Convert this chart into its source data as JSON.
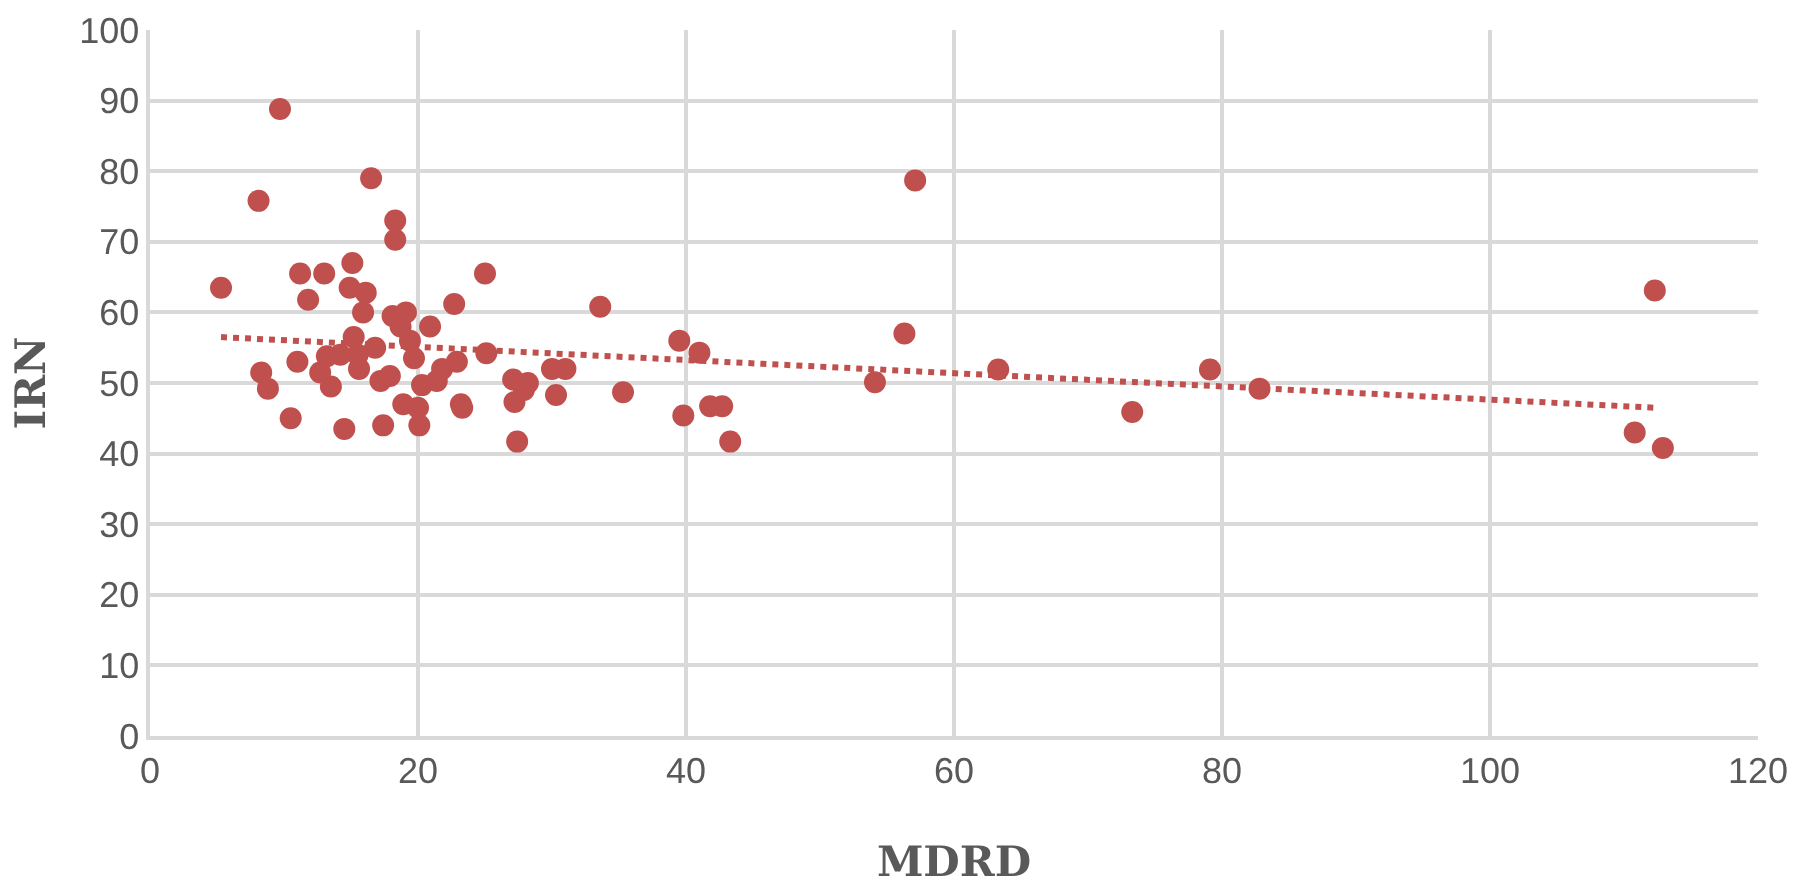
{
  "chart_data": {
    "type": "scatter",
    "xlabel": "MDRD",
    "ylabel": "IRN",
    "xlim": [
      0,
      120
    ],
    "xticks": [
      0,
      20,
      40,
      60,
      80,
      100,
      120
    ],
    "ylim": [
      0,
      100
    ],
    "yticks": [
      0,
      10,
      20,
      30,
      40,
      50,
      60,
      70,
      80,
      90,
      100
    ],
    "grid": true,
    "series": [
      {
        "color": "#c0504d",
        "marker": "circle",
        "x": [
          5.3,
          8.1,
          8.3,
          8.8,
          9.7,
          10.5,
          11,
          11.2,
          11.8,
          12.7,
          13,
          13.2,
          13.5,
          14.2,
          14.5,
          14.9,
          15.1,
          15.2,
          15.5,
          15.6,
          15.9,
          16.1,
          16.5,
          16.8,
          17.2,
          17.4,
          17.9,
          18.1,
          18.3,
          18.3,
          18.7,
          18.9,
          19.1,
          19.4,
          19.7,
          20,
          20.1,
          20.3,
          20.9,
          21.4,
          21.8,
          22.7,
          22.9,
          23.2,
          23.3,
          25,
          25.1,
          27.1,
          27.2,
          27.4,
          27.9,
          28.2,
          30,
          30.3,
          31,
          33.6,
          35.3,
          39.5,
          39.8,
          41,
          41.8,
          42.7,
          43.3,
          54.1,
          56.3,
          57.1,
          63.3,
          73.3,
          79.1,
          82.8,
          110.8,
          112.3,
          112.9
        ],
        "values": [
          63.5,
          75.8,
          51.5,
          49.2,
          88.8,
          45,
          53,
          65.5,
          61.8,
          51.5,
          65.5,
          53.8,
          49.5,
          54,
          43.5,
          63.5,
          67,
          56.5,
          54,
          52,
          60,
          62.8,
          79,
          55,
          50.3,
          44,
          51,
          59.5,
          73,
          70.3,
          58,
          47,
          60,
          56,
          53.5,
          46.5,
          44,
          49.7,
          58,
          50.3,
          52,
          61.2,
          53,
          47,
          46.5,
          65.5,
          54.2,
          50.5,
          47.3,
          41.7,
          49,
          50,
          52,
          48.3,
          52,
          60.8,
          48.7,
          56,
          45.4,
          54.3,
          46.7,
          46.7,
          41.7,
          50.1,
          57,
          78.7,
          51.9,
          45.9,
          51.9,
          49.2,
          43,
          63.1,
          40.8
        ]
      },
      {
        "type": "line",
        "line_style": "dotted",
        "color": "#c0504d",
        "x": [
          5.3,
          112.3
        ],
        "values": [
          56.5,
          46.5
        ]
      }
    ]
  }
}
